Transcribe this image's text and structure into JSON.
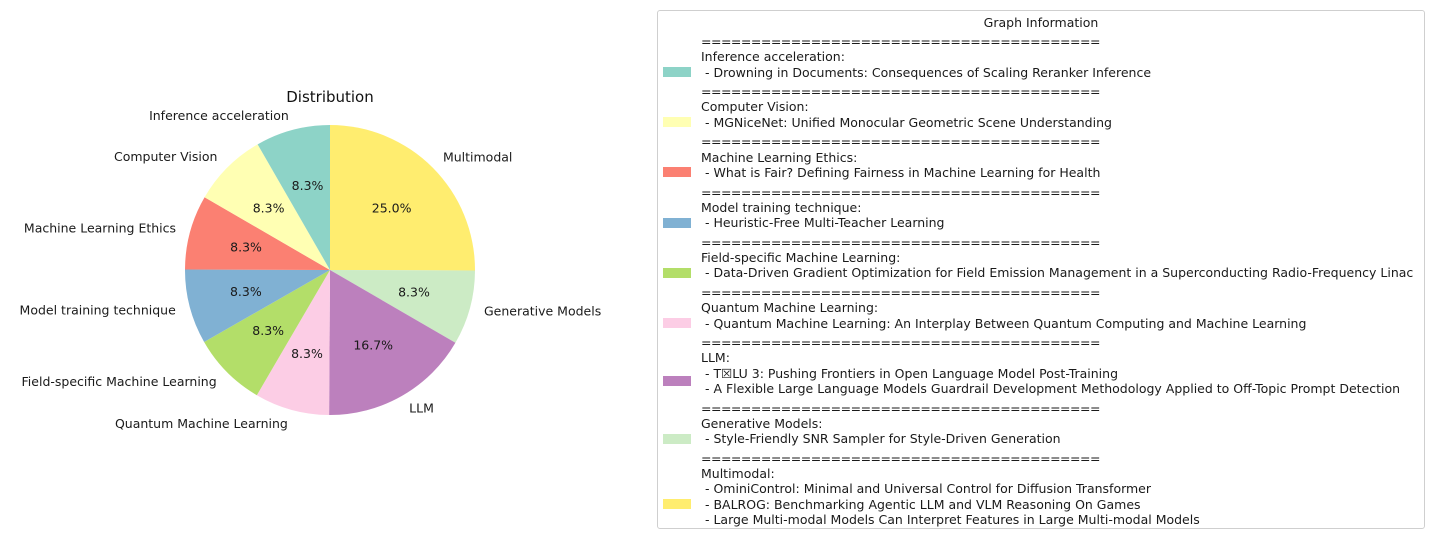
{
  "chart_data": {
    "type": "pie",
    "title": "Distribution",
    "slices": [
      {
        "label": "Multimodal",
        "value": 25.0,
        "pct_label": "25.0%",
        "color": "#ffed6f"
      },
      {
        "label": "Generative Models",
        "value": 8.3,
        "pct_label": "8.3%",
        "color": "#ccebc5"
      },
      {
        "label": "LLM",
        "value": 16.7,
        "pct_label": "16.7%",
        "color": "#bc80bd"
      },
      {
        "label": "Quantum Machine Learning",
        "value": 8.3,
        "pct_label": "8.3%",
        "color": "#fccde5"
      },
      {
        "label": "Field-specific Machine Learning",
        "value": 8.3,
        "pct_label": "8.3%",
        "color": "#b3de69"
      },
      {
        "label": "Model training technique",
        "value": 8.3,
        "pct_label": "8.3%",
        "color": "#80b1d3"
      },
      {
        "label": "Machine Learning Ethics",
        "value": 8.3,
        "pct_label": "8.3%",
        "color": "#fb8072"
      },
      {
        "label": "Computer Vision",
        "value": 8.3,
        "pct_label": "8.3%",
        "color": "#ffffb3"
      },
      {
        "label": "Inference acceleration",
        "value": 8.3,
        "pct_label": "8.3%",
        "color": "#8dd3c7"
      }
    ],
    "legend_placement": "right"
  },
  "legend": {
    "title": "Graph Information",
    "separator": "========================================",
    "entries": [
      {
        "category": "Inference acceleration:",
        "color": "#8dd3c7",
        "papers": [
          " - Drowning in Documents: Consequences of Scaling Reranker Inference"
        ]
      },
      {
        "category": "Computer Vision:",
        "color": "#ffffb3",
        "papers": [
          " - MGNiceNet: Unified Monocular Geometric Scene Understanding"
        ]
      },
      {
        "category": "Machine Learning Ethics:",
        "color": "#fb8072",
        "papers": [
          " - What is Fair? Defining Fairness in Machine Learning for Health"
        ]
      },
      {
        "category": "Model training technique:",
        "color": "#80b1d3",
        "papers": [
          " - Heuristic-Free Multi-Teacher Learning"
        ]
      },
      {
        "category": "Field-specific Machine Learning:",
        "color": "#b3de69",
        "papers": [
          " - Data-Driven Gradient Optimization for Field Emission Management in a Superconducting Radio-Frequency Linac"
        ]
      },
      {
        "category": "Quantum Machine Learning:",
        "color": "#fccde5",
        "papers": [
          " - Quantum Machine Learning: An Interplay Between Quantum Computing and Machine Learning"
        ]
      },
      {
        "category": "LLM:",
        "color": "#bc80bd",
        "papers": [
          " - T☒LU 3: Pushing Frontiers in Open Language Model Post-Training",
          " - A Flexible Large Language Models Guardrail Development Methodology Applied to Off-Topic Prompt Detection"
        ]
      },
      {
        "category": "Generative Models:",
        "color": "#ccebc5",
        "papers": [
          " - Style-Friendly SNR Sampler for Style-Driven Generation"
        ]
      },
      {
        "category": "Multimodal:",
        "color": "#ffed6f",
        "papers": [
          " - OminiControl: Minimal and Universal Control for Diffusion Transformer",
          " - BALROG: Benchmarking Agentic LLM and VLM Reasoning On Games",
          " - Large Multi-modal Models Can Interpret Features in Large Multi-modal Models"
        ]
      }
    ]
  }
}
